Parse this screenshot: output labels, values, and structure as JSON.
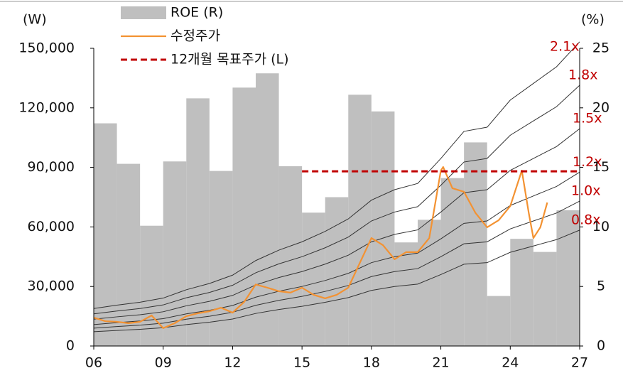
{
  "chart_data": {
    "type": "combo",
    "y_unit": "(W)",
    "y2_unit": "(%)",
    "xlim": [
      6,
      27
    ],
    "xticks": [
      {
        "value": 6,
        "label": "06"
      },
      {
        "value": 9,
        "label": "09"
      },
      12,
      15,
      18,
      21,
      24,
      27
    ],
    "ylim": [
      0,
      150000
    ],
    "yticks": [
      0,
      {
        "value": 30000,
        "label": "30,000"
      },
      {
        "value": 60000,
        "label": "60,000"
      },
      {
        "value": 90000,
        "label": "90,000"
      },
      {
        "value": 120000,
        "label": "120,000"
      },
      {
        "value": 150000,
        "label": "150,000"
      }
    ],
    "y2lim": [
      0,
      25
    ],
    "y2ticks": [
      0,
      5,
      10,
      15,
      20,
      25
    ],
    "series": [
      {
        "name": "ROE (R)",
        "type": "bar",
        "axis": "y2",
        "color": "#bfbfbf",
        "x": [
          6,
          7,
          8,
          9,
          10,
          11,
          12,
          13,
          14,
          15,
          16,
          17,
          18,
          19,
          20,
          21,
          22,
          23,
          24,
          25,
          26
        ],
        "values": [
          18.7,
          15.3,
          10.1,
          15.5,
          20.8,
          14.7,
          21.7,
          22.9,
          15.1,
          11.2,
          12.5,
          21.1,
          19.7,
          8.7,
          10.6,
          14.1,
          17.1,
          4.2,
          9.0,
          7.9,
          11.4
        ]
      },
      {
        "name": "수정주가",
        "type": "line",
        "color": "#f39232",
        "x": [
          6,
          6.5,
          7,
          7.5,
          8,
          8.5,
          9,
          9.5,
          10,
          10.5,
          11,
          11.5,
          12,
          12.5,
          13,
          13.5,
          14,
          14.5,
          15,
          15.5,
          16,
          16.5,
          17,
          17.5,
          18,
          18.5,
          19,
          19.5,
          20,
          20.5,
          21,
          21.1,
          21.5,
          22,
          22.5,
          23,
          23.5,
          24,
          24.5,
          24.8,
          25,
          25.3,
          25.6
        ],
        "values": [
          14300,
          12500,
          12200,
          11500,
          12200,
          15400,
          9000,
          11500,
          15000,
          16500,
          17500,
          19300,
          16800,
          22200,
          31000,
          29400,
          27600,
          26900,
          29400,
          25800,
          24000,
          25800,
          29400,
          41900,
          54400,
          50800,
          43700,
          47300,
          47300,
          54400,
          88400,
          90200,
          79500,
          77700,
          67000,
          59800,
          63400,
          70500,
          88400,
          67000,
          54400,
          59800,
          72300
        ]
      },
      {
        "name": "12개월 목표주가 (L)",
        "type": "line",
        "dashed": true,
        "color": "#c00000",
        "x": [
          15,
          27
        ],
        "values": [
          88000,
          88000
        ]
      }
    ],
    "band_color": "#333333",
    "band_label_color": "#c00000",
    "band_x": [
      6,
      7,
      8,
      9,
      10,
      11,
      12,
      13,
      14,
      15,
      16,
      17,
      18,
      19,
      20,
      21,
      22,
      23,
      24,
      25,
      26,
      27
    ],
    "bands": [
      {
        "name": "2.1x",
        "values": [
          18900,
          20580,
          22050,
          24150,
          28350,
          31500,
          35700,
          43050,
          48300,
          52500,
          57750,
          64050,
          73500,
          78750,
          81900,
          94500,
          108150,
          110250,
          123900,
          132300,
          140700,
          153300
        ]
      },
      {
        "name": "1.8x",
        "values": [
          16200,
          17640,
          18900,
          20700,
          24300,
          27000,
          30600,
          36900,
          41400,
          45000,
          49500,
          54900,
          63000,
          67500,
          70200,
          81000,
          92700,
          94500,
          106200,
          113400,
          120600,
          131400
        ]
      },
      {
        "name": "1.5x",
        "values": [
          13500,
          14700,
          15750,
          17250,
          20250,
          22500,
          25500,
          30750,
          34500,
          37500,
          41250,
          45750,
          52500,
          56250,
          58500,
          67500,
          77250,
          78750,
          88500,
          94500,
          100500,
          109500
        ]
      },
      {
        "name": "1.2x",
        "values": [
          10800,
          11760,
          12600,
          13800,
          16200,
          18000,
          20400,
          24600,
          27600,
          30000,
          33000,
          36600,
          42000,
          45000,
          46800,
          54000,
          61800,
          63000,
          70800,
          75600,
          80400,
          87600
        ]
      },
      {
        "name": "1.0x",
        "values": [
          9000,
          9800,
          10500,
          11500,
          13500,
          15000,
          17000,
          20500,
          23000,
          25000,
          27500,
          30500,
          35000,
          37500,
          39000,
          45000,
          51500,
          52500,
          59000,
          63000,
          67000,
          73000
        ]
      },
      {
        "name": "0.8x",
        "values": [
          7200,
          7840,
          8400,
          9200,
          10800,
          12000,
          13600,
          16400,
          18400,
          20000,
          22000,
          24400,
          28000,
          30000,
          31200,
          36000,
          41200,
          42000,
          47200,
          50400,
          53600,
          58400
        ]
      }
    ]
  }
}
